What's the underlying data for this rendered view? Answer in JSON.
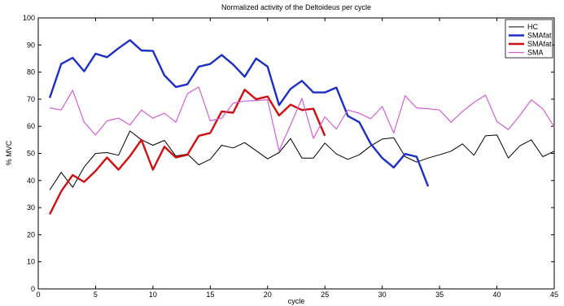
{
  "chart_data": {
    "type": "line",
    "title": "Normalized activity of the Deltoideus per cycle",
    "xlabel": "cycle",
    "ylabel": "% MVC",
    "xlim": [
      0,
      45
    ],
    "ylim": [
      0,
      100
    ],
    "xticks": [
      0,
      5,
      10,
      15,
      20,
      25,
      30,
      35,
      40,
      45
    ],
    "yticks": [
      0,
      10,
      20,
      30,
      40,
      50,
      60,
      70,
      80,
      90,
      100
    ],
    "grid": false,
    "legend_position": "top-right",
    "series": [
      {
        "name": "HC",
        "color": "#000000",
        "x": [
          1,
          2,
          3,
          4,
          5,
          6,
          7,
          8,
          9,
          10,
          11,
          12,
          13,
          14,
          15,
          16,
          17,
          18,
          19,
          20,
          21,
          22,
          23,
          24,
          25,
          26,
          27,
          28,
          29,
          30,
          31,
          32,
          33,
          34,
          35,
          36,
          37,
          38,
          39,
          40,
          41,
          42,
          43,
          44,
          45
        ],
        "y": [
          36.5,
          43,
          37.5,
          45,
          50,
          50.3,
          49.3,
          58.3,
          55,
          53,
          54.8,
          49,
          49.8,
          45.8,
          47.8,
          53,
          52,
          54,
          51,
          48,
          50.3,
          55.5,
          48.3,
          48.3,
          53.8,
          49.8,
          47.8,
          49.5,
          52.8,
          55.3,
          55.8,
          48.8,
          46.8,
          48.3,
          49.5,
          50.8,
          53.5,
          49.3,
          56.5,
          56.8,
          48.3,
          52.8,
          55,
          48.8,
          50.8
        ]
      },
      {
        "name": "SMAfat",
        "color": "#1c2fc4",
        "x": [
          1,
          2,
          3,
          4,
          5,
          6,
          7,
          8,
          9,
          10,
          11,
          12,
          13,
          14,
          15,
          16,
          17,
          18,
          19,
          20,
          21,
          22,
          23,
          24,
          25,
          26,
          27,
          28,
          29,
          30,
          31,
          32,
          33,
          34
        ],
        "y": [
          70.5,
          83,
          85.3,
          80.3,
          86.8,
          85.5,
          88.8,
          91.8,
          88,
          87.8,
          78.8,
          74.5,
          75.5,
          82,
          83,
          86.3,
          82.8,
          78.3,
          85,
          82,
          67.8,
          73.8,
          76.8,
          72.5,
          72.5,
          74.3,
          63.8,
          61.5,
          53.5,
          48.3,
          44.8,
          49.8,
          48.8,
          37.8
        ]
      },
      {
        "name": "SMAfat",
        "color": "#d01010",
        "x": [
          1,
          2,
          3,
          4,
          5,
          6,
          7,
          8,
          9,
          10,
          11,
          12,
          13,
          14,
          15,
          16,
          17,
          18,
          19,
          20,
          21,
          22,
          23,
          24,
          25
        ],
        "y": [
          27.5,
          36,
          42,
          39.5,
          43.5,
          48.5,
          44,
          49,
          55,
          44,
          52.5,
          48.5,
          49.5,
          56.5,
          57.5,
          65.5,
          65,
          73.5,
          70,
          71,
          64,
          68,
          66,
          66.5,
          56.5
        ]
      },
      {
        "name": "SMA",
        "color": "#d45fd4",
        "x": [
          1,
          2,
          3,
          4,
          5,
          6,
          7,
          8,
          9,
          10,
          11,
          12,
          13,
          14,
          15,
          16,
          17,
          18,
          19,
          20,
          21,
          22,
          23,
          24,
          25,
          26,
          27,
          28,
          29,
          30,
          31,
          32,
          33,
          34,
          35,
          36,
          37,
          38,
          39,
          40,
          41,
          42,
          43,
          44,
          45
        ],
        "y": [
          66.8,
          66,
          73.3,
          61.5,
          56.8,
          62,
          63,
          60.5,
          66,
          63,
          64.8,
          61.5,
          72,
          74.5,
          62,
          63,
          68.5,
          69.3,
          69.5,
          69.8,
          51,
          60.5,
          70.3,
          55.5,
          63.5,
          59,
          66,
          64.8,
          62.8,
          67.3,
          57.5,
          71.3,
          66.8,
          66.5,
          66,
          61.5,
          65.5,
          68.8,
          71.5,
          61.8,
          58.8,
          64,
          69.8,
          66.5,
          59.8
        ]
      }
    ]
  }
}
